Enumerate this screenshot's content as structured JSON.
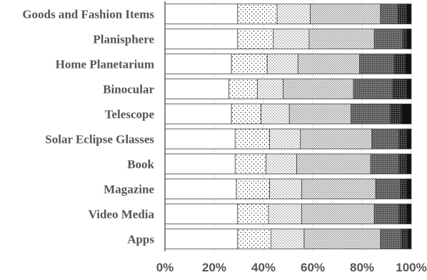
{
  "chart_data": {
    "type": "bar",
    "orientation": "horizontal",
    "stacked": true,
    "percent": true,
    "title": "",
    "xlabel": "",
    "ylabel": "",
    "xlim": [
      0,
      100
    ],
    "x_ticks": [
      "0%",
      "20%",
      "40%",
      "60%",
      "80%",
      "100%"
    ],
    "grid": "vertical",
    "legend": "none",
    "categories": [
      "Goods and Fashion Items",
      "Planisphere",
      "Home Planetarium",
      "Binocular",
      "Telescope",
      "Solar Eclipse Glasses",
      "Book",
      "Magazine",
      "Video Media",
      "Apps"
    ],
    "series": [
      {
        "values": [
          29.5,
          29.5,
          27.0,
          26.0,
          27.0,
          28.5,
          28.5,
          29.0,
          29.5,
          29.5
        ],
        "fill": "blank"
      },
      {
        "values": [
          16.0,
          14.5,
          14.5,
          11.5,
          12.0,
          14.0,
          12.5,
          13.5,
          12.5,
          13.5
        ],
        "fill": "sparse-dots"
      },
      {
        "values": [
          13.5,
          14.5,
          12.5,
          10.5,
          11.5,
          12.5,
          12.5,
          13.0,
          13.5,
          13.5
        ],
        "fill": "dots"
      },
      {
        "values": [
          28.5,
          26.5,
          25.0,
          28.5,
          25.0,
          29.0,
          30.0,
          30.0,
          29.5,
          31.0
        ],
        "fill": "dense-dots"
      },
      {
        "values": [
          7.0,
          11.5,
          14.0,
          16.0,
          16.0,
          11.0,
          11.5,
          10.0,
          10.0,
          8.5
        ],
        "fill": "dark-dots"
      },
      {
        "values": [
          3.5,
          1.5,
          4.5,
          5.5,
          4.5,
          3.0,
          3.0,
          2.5,
          3.0,
          2.5
        ],
        "fill": "darker-dots"
      },
      {
        "values": [
          2.0,
          2.0,
          2.5,
          2.0,
          4.0,
          2.0,
          2.0,
          2.0,
          2.0,
          1.5
        ],
        "fill": "black"
      }
    ],
    "colors": {
      "border": "#404040",
      "grid": "#d9d9d9",
      "axis": "#404040",
      "label": "#555555"
    }
  }
}
